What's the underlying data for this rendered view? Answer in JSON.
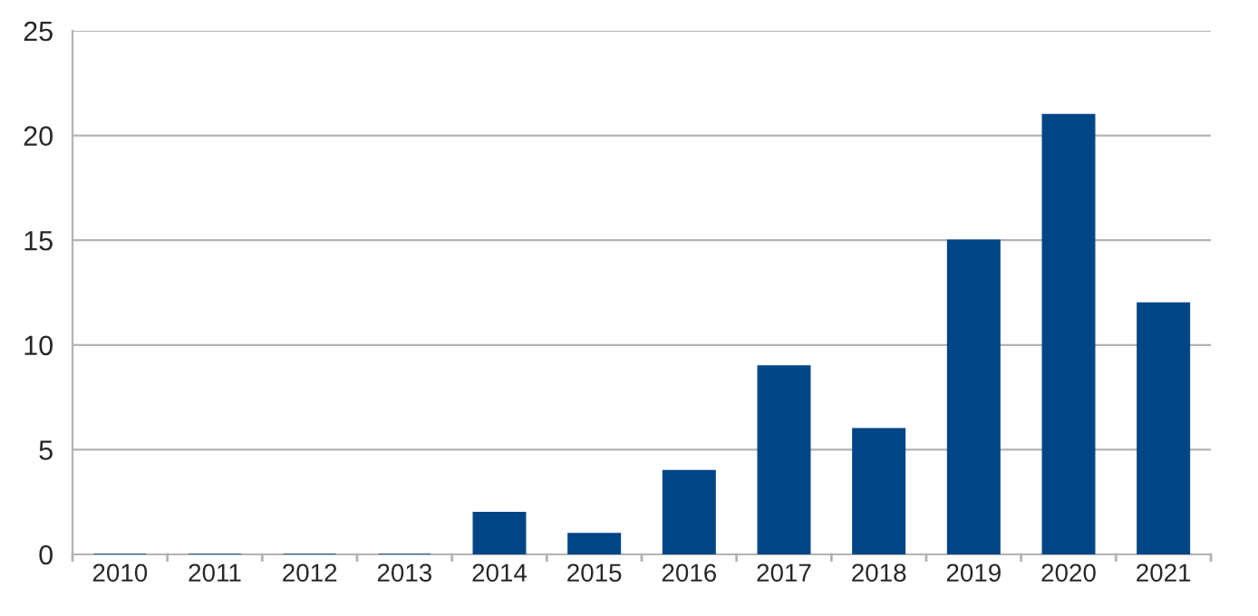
{
  "chart_data": {
    "type": "bar",
    "categories": [
      "2010",
      "2011",
      "2012",
      "2013",
      "2014",
      "2015",
      "2016",
      "2017",
      "2018",
      "2019",
      "2020",
      "2021"
    ],
    "values": [
      0,
      0,
      0,
      0,
      2,
      1,
      4,
      9,
      6,
      15,
      21,
      12
    ],
    "color": "#004586",
    "ylim": [
      0,
      25
    ],
    "yticks": [
      0,
      5,
      10,
      15,
      20,
      25
    ],
    "grid": "y"
  }
}
